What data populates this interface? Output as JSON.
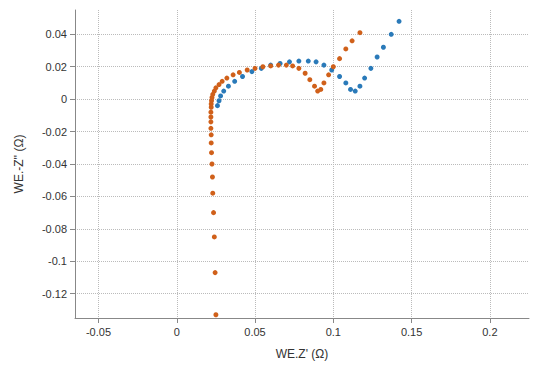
{
  "chart_data": {
    "type": "scatter",
    "x_label": "WE.Z' (Ω)",
    "y_label": "WE.-Z'' (Ω)",
    "xlim": [
      -0.065,
      0.225
    ],
    "xticks": [
      -0.05,
      0,
      0.05,
      0.1,
      0.15,
      0.2
    ],
    "ylim": [
      -0.135,
      0.055
    ],
    "yticks": [
      -0.12,
      -0.1,
      -0.08,
      -0.06,
      -0.04,
      -0.02,
      0,
      0.02,
      0.04
    ],
    "grid": true,
    "marker": "circle",
    "series": [
      {
        "color": "#2a7ab9",
        "x": [
          0.026,
          0.027,
          0.028,
          0.03,
          0.033,
          0.037,
          0.042,
          0.048,
          0.054,
          0.06,
          0.066,
          0.072,
          0.078,
          0.084,
          0.089,
          0.094,
          0.099,
          0.104,
          0.108,
          0.111,
          0.114,
          0.117,
          0.12,
          0.124,
          0.128,
          0.132,
          0.137,
          0.142
        ],
        "values": [
          -0.004,
          -0.001,
          0.002,
          0.005,
          0.008,
          0.011,
          0.014,
          0.017,
          0.019,
          0.021,
          0.022,
          0.023,
          0.0235,
          0.0235,
          0.023,
          0.021,
          0.018,
          0.014,
          0.01,
          0.006,
          0.005,
          0.008,
          0.013,
          0.019,
          0.026,
          0.032,
          0.04,
          0.048
        ]
      },
      {
        "color": "#d0601a",
        "x": [
          0.025,
          0.0245,
          0.024,
          0.0235,
          0.023,
          0.0228,
          0.0225,
          0.0222,
          0.022,
          0.022,
          0.0218,
          0.0218,
          0.0218,
          0.0218,
          0.022,
          0.022,
          0.0222,
          0.0225,
          0.023,
          0.024,
          0.025,
          0.027,
          0.029,
          0.032,
          0.036,
          0.04,
          0.045,
          0.05,
          0.055,
          0.06,
          0.065,
          0.07,
          0.074,
          0.078,
          0.082,
          0.085,
          0.088,
          0.09,
          0.092,
          0.094,
          0.097,
          0.1,
          0.104,
          0.108,
          0.112,
          0.117
        ],
        "values": [
          -0.133,
          -0.107,
          -0.085,
          -0.07,
          -0.058,
          -0.048,
          -0.04,
          -0.033,
          -0.027,
          -0.022,
          -0.018,
          -0.014,
          -0.011,
          -0.008,
          -0.005,
          -0.003,
          -0.001,
          0.001,
          0.003,
          0.005,
          0.007,
          0.009,
          0.011,
          0.013,
          0.015,
          0.0165,
          0.018,
          0.019,
          0.02,
          0.0205,
          0.021,
          0.021,
          0.0205,
          0.019,
          0.016,
          0.012,
          0.008,
          0.005,
          0.006,
          0.01,
          0.015,
          0.02,
          0.025,
          0.031,
          0.036,
          0.041
        ]
      }
    ]
  }
}
